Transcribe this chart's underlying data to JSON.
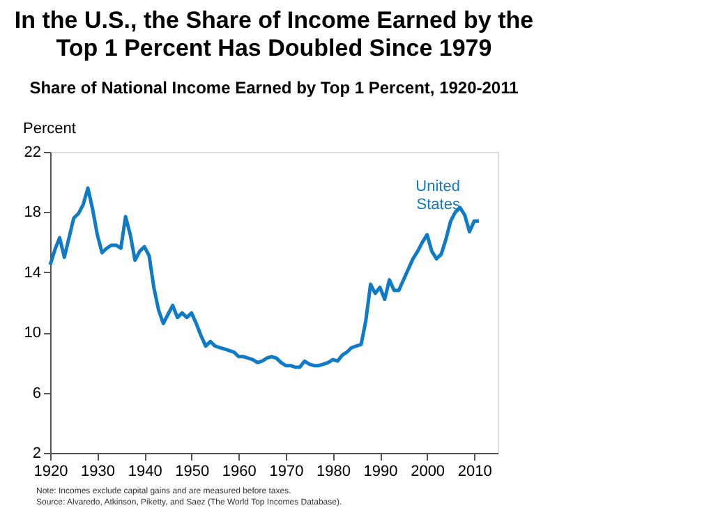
{
  "chart_data": {
    "type": "line",
    "title": "In the U.S., the Share of Income Earned by the Top 1 Percent Has Doubled Since 1979",
    "subtitle": "Share of National Income Earned by Top 1 Percent, 1920-2011",
    "ylabel": "Percent",
    "x": [
      1920,
      1921,
      1922,
      1923,
      1924,
      1925,
      1926,
      1927,
      1928,
      1929,
      1930,
      1931,
      1932,
      1933,
      1934,
      1935,
      1936,
      1937,
      1938,
      1939,
      1940,
      1941,
      1942,
      1943,
      1944,
      1945,
      1946,
      1947,
      1948,
      1949,
      1950,
      1951,
      1952,
      1953,
      1954,
      1955,
      1956,
      1957,
      1958,
      1959,
      1960,
      1961,
      1962,
      1963,
      1964,
      1965,
      1966,
      1967,
      1968,
      1969,
      1970,
      1971,
      1972,
      1973,
      1974,
      1975,
      1976,
      1977,
      1978,
      1979,
      1980,
      1981,
      1982,
      1983,
      1984,
      1985,
      1986,
      1987,
      1988,
      1989,
      1990,
      1991,
      1992,
      1993,
      1994,
      1995,
      1996,
      1997,
      1998,
      1999,
      2000,
      2001,
      2002,
      2003,
      2004,
      2005,
      2006,
      2007,
      2008,
      2009,
      2010,
      2011
    ],
    "series": [
      {
        "name": "United States",
        "color": "#0f7bc6",
        "values": [
          14.5,
          15.5,
          16.3,
          15.0,
          16.3,
          17.6,
          17.9,
          18.5,
          19.6,
          18.2,
          16.5,
          15.3,
          15.6,
          15.8,
          15.8,
          15.6,
          17.7,
          16.5,
          14.8,
          15.4,
          15.7,
          15.1,
          13.0,
          11.5,
          10.6,
          11.2,
          11.8,
          11.0,
          11.3,
          11.0,
          11.3,
          10.6,
          9.8,
          9.1,
          9.4,
          9.1,
          9.0,
          8.9,
          8.8,
          8.7,
          8.4,
          8.4,
          8.3,
          8.2,
          8.0,
          8.1,
          8.3,
          8.4,
          8.3,
          8.0,
          7.8,
          7.8,
          7.7,
          7.7,
          8.1,
          7.9,
          7.8,
          7.8,
          7.9,
          8.0,
          8.2,
          8.1,
          8.5,
          8.7,
          9.0,
          9.1,
          9.2,
          10.8,
          13.2,
          12.6,
          13.0,
          12.2,
          13.5,
          12.8,
          12.8,
          13.5,
          14.2,
          14.9,
          15.4,
          16.0,
          16.5,
          15.4,
          14.9,
          15.2,
          16.2,
          17.4,
          18.0,
          18.3,
          17.8,
          16.7,
          17.4,
          17.4
        ]
      }
    ],
    "xlim": [
      1920,
      2015
    ],
    "xticks": [
      1920,
      1930,
      1940,
      1950,
      1960,
      1970,
      1980,
      1990,
      2000,
      2010
    ],
    "ylim": [
      2,
      22
    ],
    "yticks": [
      2,
      6,
      10,
      14,
      18,
      22
    ],
    "grid": false,
    "legend": false,
    "marker": "none",
    "line_style": "solid",
    "annotations": [
      "Note: Incomes exclude capital gains and are measured before taxes.",
      "Source: Alvaredo, Atkinson, Piketty, and Saez (The World Top Incomes Database)."
    ]
  }
}
